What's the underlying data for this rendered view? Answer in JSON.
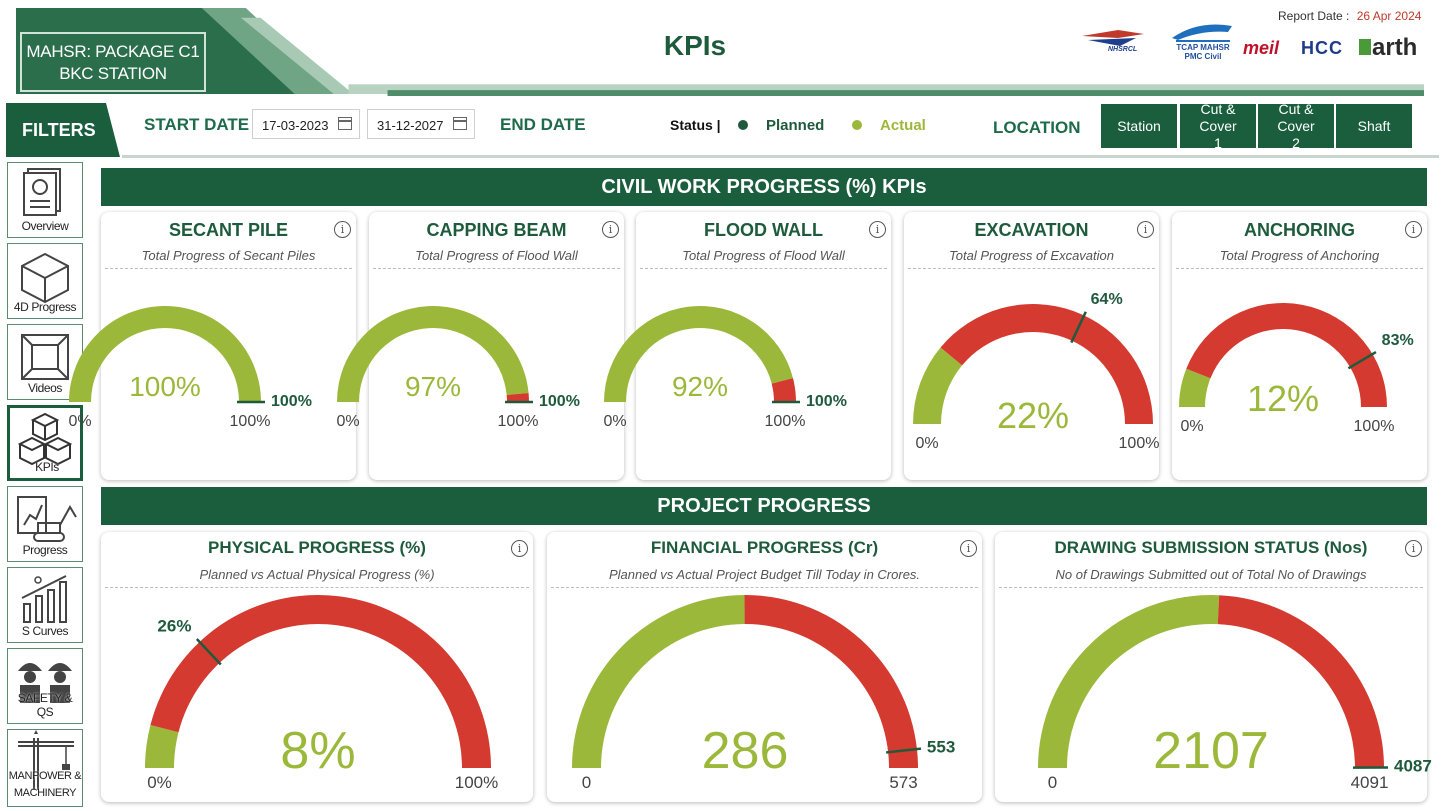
{
  "header": {
    "project_line1": "MAHSR: PACKAGE C1",
    "project_line2": "BKC STATION",
    "title": "KPIs",
    "report_date_label": "Report Date :",
    "report_date_value": "26 Apr 2024",
    "logos": [
      "NHSRCL",
      "TCAP MAHSR PMC Civil",
      "meil",
      "HCC",
      "arth"
    ]
  },
  "filters": {
    "label": "FILTERS",
    "start_label": "START DATE",
    "start_value": "17-03-2023",
    "end_value": "31-12-2027",
    "end_label": "END DATE",
    "status_label": "Status |",
    "planned_label": "Planned",
    "actual_label": "Actual",
    "location_label": "LOCATION",
    "locations": [
      "Station",
      "Cut & Cover 1",
      "Cut & Cover 2",
      "Shaft"
    ]
  },
  "colors": {
    "brand": "#1a5e3e",
    "planned": "#1f5a3d",
    "actual": "#9bb83a",
    "remaining": "#d43a2f"
  },
  "sidebar": [
    {
      "label": "Overview",
      "icon": "report-icon"
    },
    {
      "label": "4D Progress",
      "icon": "cube-icon"
    },
    {
      "label": "Videos",
      "icon": "video-icon"
    },
    {
      "label": "KPIs",
      "icon": "boxes-icon",
      "active": true
    },
    {
      "label": "Progress",
      "icon": "excavator-icon"
    },
    {
      "label": "S Curves",
      "icon": "s-curve-icon"
    },
    {
      "label": "SAFETY & QS",
      "icon": "workers-icon"
    },
    {
      "label": "MANPOWER & MACHINERY",
      "icon": "crane-icon"
    }
  ],
  "sections": {
    "civil": "CIVIL WORK PROGRESS (%) KPIs",
    "project": "PROJECT PROGRESS"
  },
  "kpis": [
    {
      "title": "SECANT PILE",
      "subtitle": "Total Progress of Secant Piles",
      "actual": 100,
      "planned": 100,
      "max": 100,
      "center_label": "100%",
      "planned_label": "100%",
      "min_label": "0%",
      "max_label": "100%"
    },
    {
      "title": "CAPPING BEAM",
      "subtitle": "Total Progress of Flood Wall",
      "actual": 97,
      "planned": 100,
      "max": 100,
      "center_label": "97%",
      "planned_label": "100%",
      "min_label": "0%",
      "max_label": "100%"
    },
    {
      "title": "FLOOD WALL",
      "subtitle": "Total Progress of Flood Wall",
      "actual": 92,
      "planned": 100,
      "max": 100,
      "center_label": "92%",
      "planned_label": "100%",
      "min_label": "0%",
      "max_label": "100%"
    },
    {
      "title": "EXCAVATION",
      "subtitle": "Total Progress of Excavation",
      "actual": 22,
      "planned": 64,
      "max": 100,
      "center_label": "22%",
      "planned_label": "64%",
      "min_label": "0%",
      "max_label": "100%"
    },
    {
      "title": "ANCHORING",
      "subtitle": "Total Progress of Anchoring",
      "actual": 12,
      "planned": 83,
      "max": 100,
      "center_label": "12%",
      "planned_label": "83%",
      "min_label": "0%",
      "max_label": "100%"
    }
  ],
  "project": [
    {
      "title": "PHYSICAL PROGRESS (%)",
      "subtitle": "Planned vs Actual Physical Progress (%)",
      "actual": 8,
      "planned": 26,
      "max": 100,
      "center_label": "8%",
      "planned_label": "26%",
      "min_label": "0%",
      "max_label": "100%"
    },
    {
      "title": "FINANCIAL PROGRESS (Cr)",
      "subtitle": "Planned vs Actual Project Budget Till Today in Crores.",
      "actual": 286,
      "planned": 553,
      "max": 573,
      "center_label": "286",
      "planned_label": "553",
      "min_label": "0",
      "max_label": "573"
    },
    {
      "title": "DRAWING SUBMISSION STATUS (Nos)",
      "subtitle": "No of Drawings Submitted out of Total No of Drawings",
      "actual": 2107,
      "planned": 4087,
      "max": 4091,
      "center_label": "2107",
      "planned_label": "4087",
      "min_label": "0",
      "max_label": "4091"
    }
  ]
}
